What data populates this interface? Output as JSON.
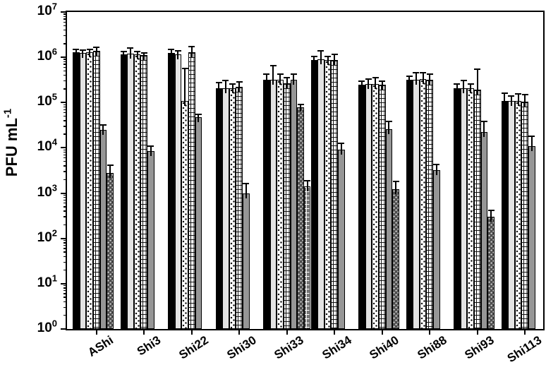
{
  "figure": {
    "ylabel_base": "PFU mL",
    "ylabel_exponent": "-1"
  },
  "chart_data": {
    "type": "bar",
    "title": "",
    "xlabel": "",
    "ylabel": "PFU mL^-1",
    "y_scale": "log",
    "grid": "off",
    "legend": "none",
    "y_axis": {
      "tick_base": "10",
      "min_exponent": 0,
      "max_exponent": 7,
      "minor_ticks": [
        2,
        3,
        4,
        5,
        6,
        7,
        8,
        9
      ]
    },
    "ylim": [
      1,
      10000000
    ],
    "categories": [
      "AShi",
      "Shi3",
      "Shi22",
      "Shi30",
      "Shi33",
      "Shi34",
      "Shi40",
      "Shi88",
      "Shi93",
      "Shi113"
    ],
    "series": [
      {
        "name": "black-solid",
        "pattern": "solid",
        "color": "#000000",
        "css": "p-black",
        "values": [
          1300000,
          1150000,
          1250000,
          210000,
          320000,
          870000,
          250000,
          320000,
          210000,
          110000
        ],
        "error_high": [
          1500000,
          1350000,
          1500000,
          280000,
          420000,
          1050000,
          300000,
          380000,
          260000,
          160000
        ]
      },
      {
        "name": "light-gray-solid",
        "pattern": "solid",
        "color": "#e3e3e3",
        "css": "p-lgray",
        "values": [
          1250000,
          1200000,
          1150000,
          210000,
          320000,
          900000,
          260000,
          320000,
          210000,
          110000
        ],
        "error_high": [
          1450000,
          1600000,
          1400000,
          310000,
          650000,
          1400000,
          330000,
          450000,
          310000,
          140000
        ]
      },
      {
        "name": "white-stippled",
        "pattern": "stipple",
        "color": "#ffffff",
        "css": "p-stipple-light",
        "values": [
          1300000,
          1150000,
          110000,
          210000,
          320000,
          870000,
          260000,
          330000,
          210000,
          110000
        ],
        "error_high": [
          1500000,
          1350000,
          570000,
          260000,
          430000,
          1050000,
          350000,
          460000,
          260000,
          155000
        ]
      },
      {
        "name": "white-brick",
        "pattern": "brick",
        "color": "#ffffff",
        "css": "p-brick-light",
        "values": [
          1400000,
          1100000,
          1300000,
          220000,
          270000,
          870000,
          250000,
          320000,
          190000,
          105000
        ],
        "error_high": [
          1650000,
          1250000,
          1750000,
          290000,
          360000,
          1150000,
          300000,
          430000,
          550000,
          150000
        ]
      },
      {
        "name": "medium-gray-solid",
        "pattern": "solid",
        "color": "#969696",
        "css": "p-mgray",
        "values": [
          25000,
          8500,
          47000,
          1000,
          320000,
          9000,
          26000,
          3200,
          22000,
          11000
        ],
        "error_high": [
          32000,
          11000,
          55000,
          1600,
          420000,
          12500,
          39000,
          4300,
          38000,
          18000
        ]
      },
      {
        "name": "dark-gray-checkered",
        "pattern": "checker-dots",
        "color": "#4e4e4e",
        "css": "p-checker-dark",
        "values": [
          2800,
          null,
          null,
          null,
          80000,
          null,
          1200,
          null,
          300,
          null
        ],
        "error_high": [
          4200,
          null,
          null,
          null,
          92000,
          null,
          1800,
          null,
          420,
          null
        ]
      },
      {
        "name": "dark-gray-brick",
        "pattern": "brick",
        "color": "#6e6e6e",
        "css": "p-brick-dark",
        "values": [
          null,
          null,
          null,
          null,
          1400,
          null,
          null,
          null,
          null,
          null
        ],
        "error_high": [
          null,
          null,
          null,
          null,
          1900,
          null,
          null,
          null,
          null,
          null
        ]
      }
    ]
  }
}
